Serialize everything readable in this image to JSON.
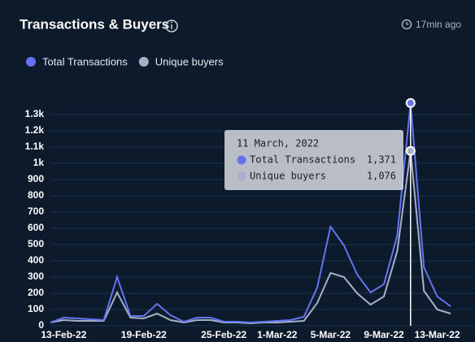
{
  "header": {
    "title": "Transactions & Buyers",
    "updated": "17min ago"
  },
  "chart_data": {
    "type": "line",
    "categories": [
      null,
      "13-Feb-22",
      null,
      null,
      null,
      null,
      null,
      "19-Feb-22",
      null,
      null,
      null,
      null,
      null,
      "25-Feb-22",
      null,
      null,
      null,
      "1-Mar-22",
      null,
      null,
      null,
      "5-Mar-22",
      null,
      null,
      null,
      "9-Mar-22",
      null,
      null,
      null,
      "13-Mar-22",
      null
    ],
    "series": [
      {
        "name": "Total Transactions",
        "color": "#6374f0",
        "values": [
          20,
          50,
          45,
          40,
          35,
          300,
          60,
          60,
          135,
          65,
          25,
          50,
          50,
          25,
          25,
          20,
          25,
          30,
          35,
          55,
          235,
          610,
          495,
          315,
          205,
          255,
          555,
          1371,
          360,
          180,
          120
        ],
        "value_labels": [
          null,
          null,
          null,
          null,
          null,
          null,
          null,
          null,
          null,
          null,
          null,
          null,
          null,
          null,
          null,
          null,
          null,
          null,
          null,
          null,
          null,
          null,
          null,
          null,
          null,
          null,
          null,
          "1,371",
          null,
          null,
          null
        ]
      },
      {
        "name": "Unique buyers",
        "color": "#a6b0c8",
        "values": [
          20,
          35,
          30,
          30,
          30,
          205,
          50,
          45,
          75,
          35,
          20,
          35,
          35,
          20,
          20,
          15,
          20,
          20,
          25,
          30,
          140,
          325,
          300,
          200,
          130,
          180,
          460,
          1076,
          215,
          100,
          75
        ],
        "value_labels": [
          null,
          null,
          null,
          null,
          null,
          null,
          null,
          null,
          null,
          null,
          null,
          null,
          null,
          null,
          null,
          null,
          null,
          null,
          null,
          null,
          null,
          null,
          null,
          null,
          null,
          null,
          null,
          "1,076",
          null,
          null,
          null
        ]
      }
    ],
    "tooltip_title": "11 March, 2022",
    "ylim": [
      0,
      1400
    ],
    "yticks": [
      0,
      100,
      200,
      300,
      400,
      500,
      600,
      700,
      800,
      900,
      {
        "value": 1000,
        "label": "1k"
      },
      {
        "value": 1100,
        "label": "1.1k"
      },
      {
        "value": 1200,
        "label": "1.2k"
      },
      {
        "value": 1300,
        "label": "1.3k"
      }
    ],
    "grid": true
  }
}
